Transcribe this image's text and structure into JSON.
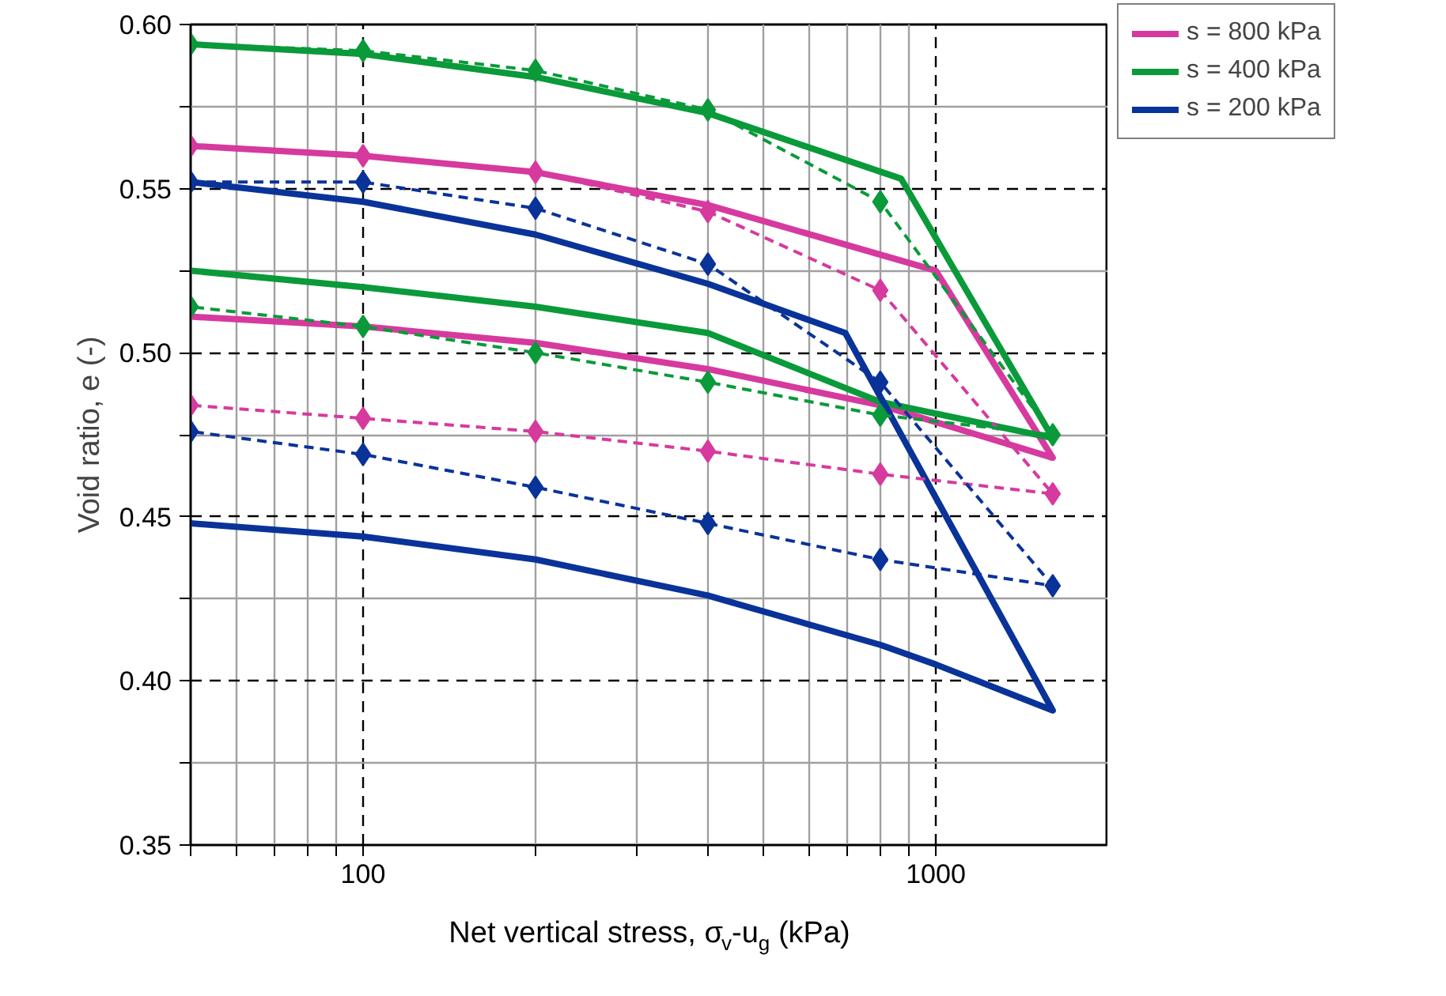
{
  "chart_data": {
    "type": "line",
    "xlabel": "Net vertical stress, σ$_{v}$-u$_{g}$ (kPa)",
    "ylabel": "Void ratio, e (-)",
    "log": "x",
    "xlim": [
      50,
      2000
    ],
    "ylim": [
      0.35,
      0.6
    ],
    "xticks": [
      {
        "value": 50,
        "label": null
      },
      {
        "value": 60,
        "label": null
      },
      {
        "value": 70,
        "label": null
      },
      {
        "value": 80,
        "label": null
      },
      {
        "value": 90,
        "label": null
      },
      100,
      {
        "value": 200,
        "label": null
      },
      {
        "value": 300,
        "label": null
      },
      {
        "value": 400,
        "label": null
      },
      {
        "value": 500,
        "label": null
      },
      {
        "value": 600,
        "label": null
      },
      {
        "value": 700,
        "label": null
      },
      {
        "value": 800,
        "label": null
      },
      {
        "value": 900,
        "label": null
      },
      1000,
      {
        "value": 2000,
        "label": null
      }
    ],
    "yticks": [
      {
        "value": 0.35,
        "label": "0.35"
      },
      {
        "value": 0.375,
        "label": null
      },
      {
        "value": 0.4,
        "label": "0.40"
      },
      {
        "value": 0.425,
        "label": null
      },
      {
        "value": 0.45,
        "label": "0.45"
      },
      {
        "value": 0.475,
        "label": null
      },
      {
        "value": 0.5,
        "label": "0.50"
      },
      {
        "value": 0.525,
        "label": null
      },
      {
        "value": 0.55,
        "label": "0.55"
      },
      {
        "value": 0.575,
        "label": null
      },
      {
        "value": 0.6,
        "label": "0.60"
      }
    ],
    "grid": true,
    "legend": "top right",
    "series": [
      {
        "name": "s = 800 kPa",
        "color": "#d63a9e",
        "line_style": "solid",
        "marker": "none",
        "x": [
          50,
          100,
          200,
          400,
          1000,
          1600,
          800,
          400,
          200,
          100,
          50
        ],
        "values": [
          0.563,
          0.56,
          0.555,
          0.545,
          0.525,
          0.468,
          0.484,
          0.495,
          0.503,
          0.508,
          0.511
        ]
      },
      {
        "name": "s = 400 kPa",
        "color": "#0a9a3a",
        "line_style": "solid",
        "marker": "none",
        "x": [
          50,
          100,
          200,
          400,
          870,
          1600,
          800,
          400,
          200,
          100,
          50
        ],
        "values": [
          0.594,
          0.591,
          0.584,
          0.573,
          0.553,
          0.474,
          0.485,
          0.506,
          0.514,
          0.52,
          0.525
        ]
      },
      {
        "name": "s = 200 kPa",
        "color": "#0a3399",
        "line_style": "solid",
        "marker": "none",
        "x": [
          50,
          100,
          200,
          400,
          695,
          1600,
          1000,
          800,
          400,
          200,
          100,
          50
        ],
        "values": [
          0.552,
          0.546,
          0.536,
          0.521,
          0.506,
          0.391,
          0.405,
          0.411,
          0.426,
          0.437,
          0.444,
          0.448
        ]
      },
      {
        "color": "#d63a9e",
        "line_style": "dashed",
        "marker": "diamond",
        "x": [
          50,
          100,
          200,
          400,
          800,
          1600,
          800,
          400,
          200,
          100,
          50
        ],
        "values": [
          0.563,
          0.56,
          0.555,
          0.543,
          0.519,
          0.457,
          0.463,
          0.47,
          0.476,
          0.48,
          0.484
        ]
      },
      {
        "color": "#0a9a3a",
        "line_style": "dashed",
        "marker": "diamond",
        "x": [
          50,
          100,
          200,
          400,
          800,
          1600,
          800,
          400,
          200,
          100,
          50
        ],
        "values": [
          0.594,
          0.592,
          0.586,
          0.574,
          0.546,
          0.475,
          0.481,
          0.491,
          0.5,
          0.508,
          0.514
        ]
      },
      {
        "color": "#0a3399",
        "line_style": "dashed",
        "marker": "diamond",
        "x": [
          50,
          100,
          200,
          400,
          800,
          1600,
          800,
          400,
          200,
          100,
          50
        ],
        "values": [
          0.552,
          0.552,
          0.544,
          0.527,
          0.491,
          0.429,
          0.437,
          0.448,
          0.459,
          0.469,
          0.476
        ]
      }
    ]
  }
}
